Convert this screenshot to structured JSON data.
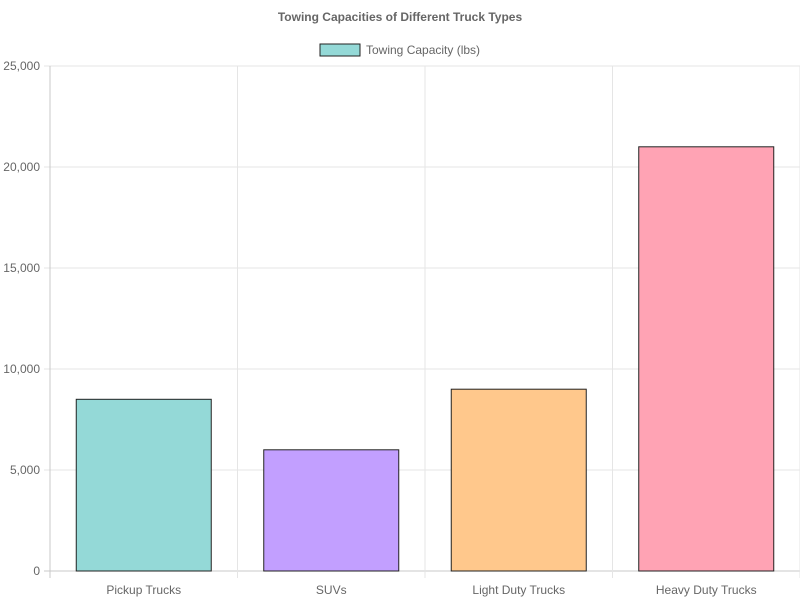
{
  "chart_data": {
    "type": "bar",
    "title": "Towing Capacities of Different Truck Types",
    "categories": [
      "Pickup Trucks",
      "SUVs",
      "Light Duty Trucks",
      "Heavy Duty Trucks"
    ],
    "series": [
      {
        "name": "Towing Capacity (lbs)",
        "values": [
          8500,
          6000,
          9000,
          21000
        ]
      }
    ],
    "bar_colors": [
      "#94d9d7",
      "#c29fff",
      "#ffc88c",
      "#ffa3b4"
    ],
    "legend_color": "#94d9d7",
    "xlabel": "",
    "ylabel": "",
    "ylim": [
      0,
      25000
    ],
    "yticks": [
      "0",
      "5,000",
      "10,000",
      "15,000",
      "20,000",
      "25,000"
    ],
    "grid": true,
    "legend_position": "top"
  }
}
